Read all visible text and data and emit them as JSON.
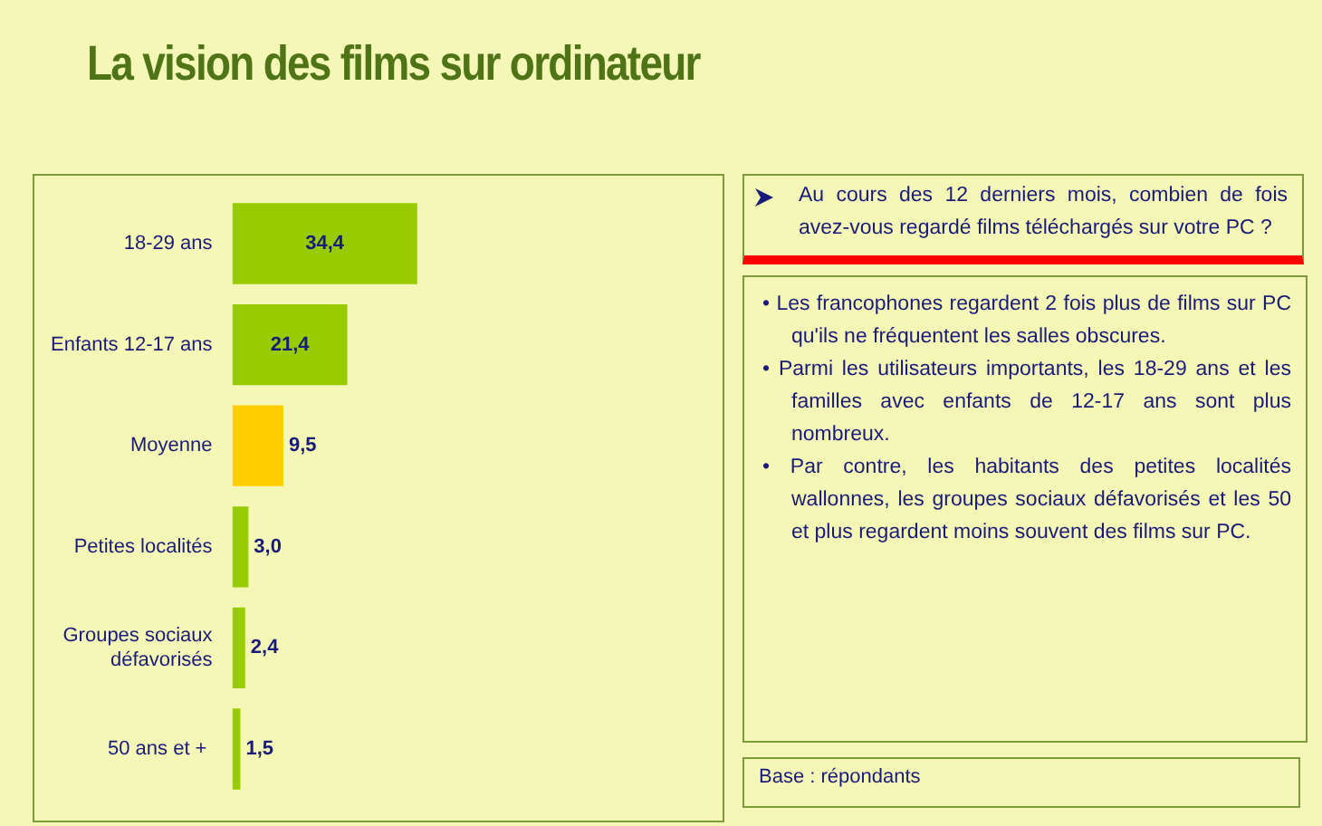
{
  "chart_data": {
    "type": "bar",
    "orientation": "horizontal",
    "title": "La vision des films sur ordinateur",
    "subtitle": "Au cours des 12 derniers mois, combien de fois avez-vous regardé films téléchargés sur votre PC ?",
    "categories": [
      "18-29 ans",
      "Enfants 12-17 ans",
      "Moyenne",
      "Petites localités",
      "Groupes sociaux défavorisés",
      "50 ans et + "
    ],
    "values": [
      34.4,
      21.4,
      9.5,
      3.0,
      2.4,
      1.5
    ],
    "value_labels": [
      "34,4",
      "21,4",
      "9,5",
      "3,0",
      "2,4",
      "1,5"
    ],
    "colors": [
      "#99cc00",
      "#99cc00",
      "#ffcc00",
      "#99cc00",
      "#99cc00",
      "#99cc00"
    ],
    "tick_labels": "y",
    "annotations": [
      "• Les francophones regardent 2 fois plus de films sur PC qu'ils ne fréquentent les salles obscures.",
      "• Parmi les utilisateurs importants, les 18-29 ans et les familles avec enfants de 12-17 ans sont plus nombreux.",
      "• Par contre, les habitants des petites localités wallonnes, les groupes sociaux défavorisés et les 50 et plus regardent moins souvent des films sur PC.",
      "Base : répondants"
    ]
  }
}
